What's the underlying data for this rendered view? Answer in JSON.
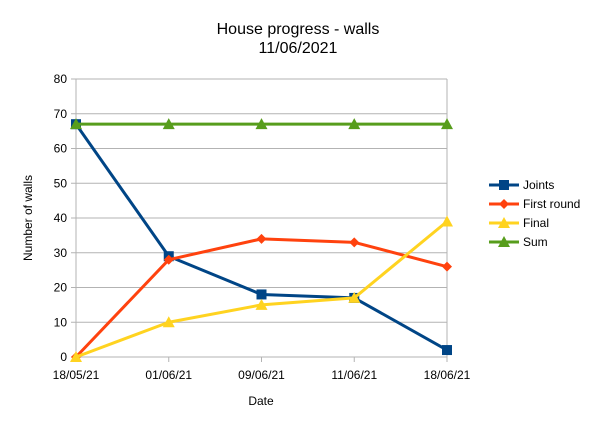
{
  "chart_data": {
    "type": "line",
    "title": "House progress - walls",
    "subtitle": "11/06/2021",
    "xlabel": "Date",
    "ylabel": "Number of walls",
    "categories": [
      "18/05/21",
      "01/06/21",
      "09/06/21",
      "11/06/21",
      "18/06/21"
    ],
    "ylim": [
      0,
      80
    ],
    "yticks": [
      0,
      10,
      20,
      30,
      40,
      50,
      60,
      70,
      80
    ],
    "grid": true,
    "legend_position": "right",
    "series": [
      {
        "name": "Joints",
        "color": "#004586",
        "marker": "square",
        "values": [
          67,
          29,
          18,
          17,
          2
        ]
      },
      {
        "name": "First round",
        "color": "#ff420e",
        "marker": "diamond",
        "values": [
          0,
          28,
          34,
          33,
          26
        ]
      },
      {
        "name": "Final",
        "color": "#ffd320",
        "marker": "triangle",
        "values": [
          0,
          10,
          15,
          17,
          39
        ]
      },
      {
        "name": "Sum",
        "color": "#579d1c",
        "marker": "triangle",
        "values": [
          67,
          67,
          67,
          67,
          67
        ]
      }
    ]
  }
}
